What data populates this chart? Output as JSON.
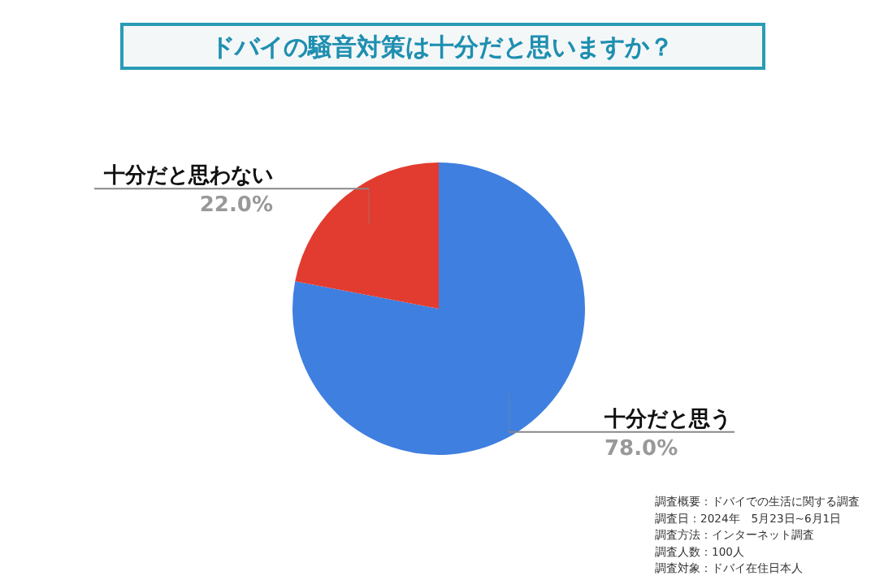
{
  "chart_data": {
    "type": "pie",
    "title": "ドバイの騒音対策は十分だと思いますか？",
    "categories": [
      "十分だと思う",
      "十分だと思わない"
    ],
    "values": [
      78.0,
      22.0
    ],
    "value_labels": [
      "78.0%",
      "22.0%"
    ],
    "colors": [
      "#3f7fe0",
      "#e23b2f"
    ],
    "annotations": [
      "調査概要：ドバイでの生活に関する調査",
      "調査日：2024年　5月23日~6月1日",
      "調査方法：インターネット調査",
      "調査人数：100人",
      "調査対象：ドバイ在住日本人"
    ]
  }
}
